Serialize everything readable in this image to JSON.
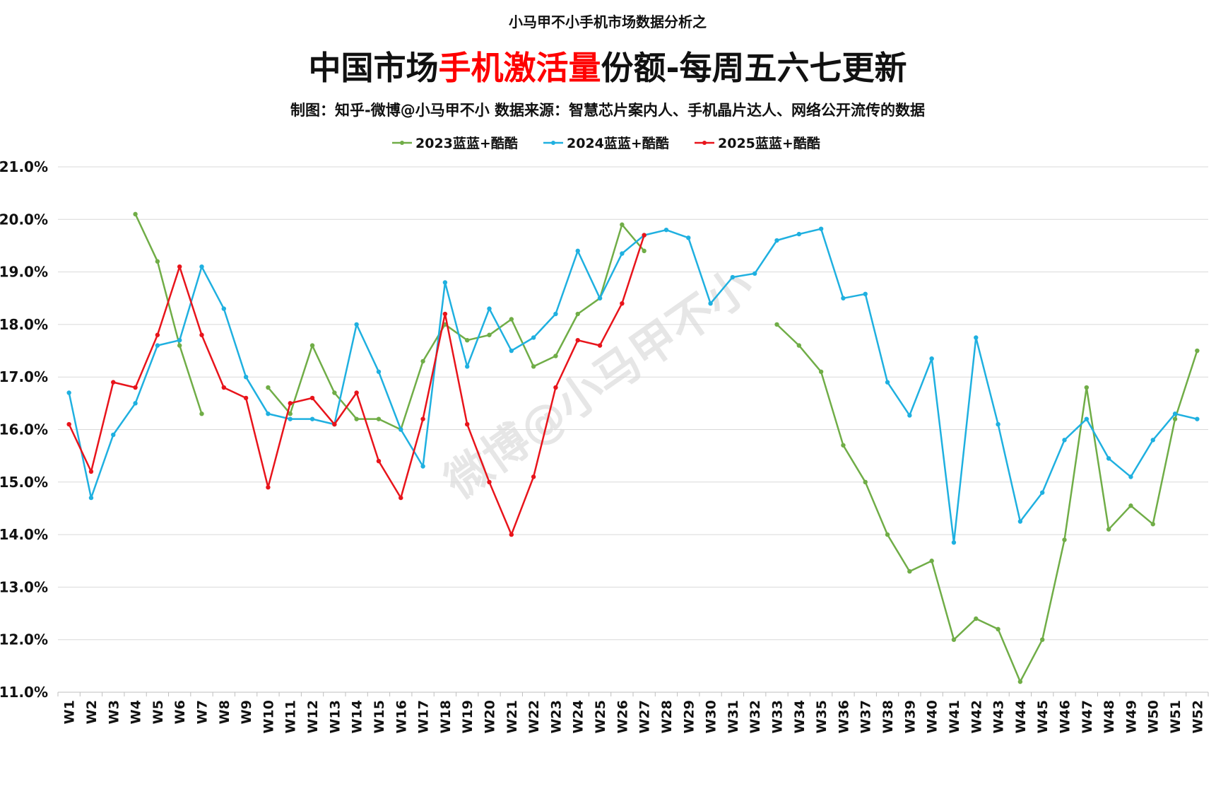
{
  "header": {
    "pretitle": "小马甲不小手机市场数据分析之",
    "title_part1": "中国市场",
    "title_highlight": "手机激活量",
    "title_part2": "份额-每周五六七更新",
    "subtitle": "制图：知乎-微博@小马甲不小  数据来源：智慧芯片案内人、手机晶片达人、网络公开流传的数据"
  },
  "watermark": "微博@小马甲不小",
  "colors": {
    "title_highlight": "#ff0000",
    "series_2023": "#70ad47",
    "series_2024": "#1fb0e0",
    "series_2025": "#e8141b",
    "grid": "#d9d9d9"
  },
  "chart_data": {
    "type": "line",
    "title": "中国市场手机激活量份额-每周五六七更新",
    "xlabel": "",
    "ylabel": "",
    "ylim": [
      11.0,
      21.0
    ],
    "y_ticks": [
      "21.0%",
      "20.0%",
      "19.0%",
      "18.0%",
      "17.0%",
      "16.0%",
      "15.0%",
      "14.0%",
      "13.0%",
      "12.0%",
      "11.0%"
    ],
    "grid": true,
    "legend_position": "top-center",
    "categories": [
      "W1",
      "W2",
      "W3",
      "W4",
      "W5",
      "W6",
      "W7",
      "W8",
      "W9",
      "W10",
      "W11",
      "W12",
      "W13",
      "W14",
      "W15",
      "W16",
      "W17",
      "W18",
      "W19",
      "W20",
      "W21",
      "W22",
      "W23",
      "W24",
      "W25",
      "W26",
      "W27",
      "W28",
      "W29",
      "W30",
      "W31",
      "W32",
      "W33",
      "W34",
      "W35",
      "W36",
      "W37",
      "W38",
      "W39",
      "W40",
      "W41",
      "W42",
      "W43",
      "W44",
      "W45",
      "W46",
      "W47",
      "W48",
      "W49",
      "W50",
      "W51",
      "W52"
    ],
    "series": [
      {
        "name": "2023蓝蓝+酷酷",
        "color": "#70ad47",
        "values": [
          null,
          null,
          null,
          20.1,
          19.2,
          17.6,
          16.3,
          null,
          null,
          16.8,
          16.3,
          17.6,
          16.7,
          16.2,
          16.2,
          16.0,
          17.3,
          18.0,
          17.7,
          17.8,
          18.1,
          17.2,
          17.4,
          18.2,
          18.5,
          19.9,
          19.4,
          null,
          null,
          null,
          null,
          null,
          18.0,
          17.6,
          17.1,
          15.7,
          15.0,
          14.0,
          13.3,
          13.5,
          12.0,
          12.4,
          12.2,
          11.2,
          12.0,
          13.9,
          16.8,
          14.1,
          14.55,
          14.2,
          16.2,
          17.5
        ]
      },
      {
        "name": "2024蓝蓝+酷酷",
        "color": "#1fb0e0",
        "values": [
          16.7,
          14.7,
          15.9,
          16.5,
          17.6,
          17.7,
          19.1,
          18.3,
          17.0,
          16.3,
          16.2,
          16.2,
          16.1,
          18.0,
          17.1,
          16.0,
          15.3,
          18.8,
          17.2,
          18.3,
          17.5,
          17.75,
          18.2,
          19.4,
          18.5,
          19.35,
          19.7,
          19.8,
          19.65,
          18.4,
          18.9,
          18.97,
          19.6,
          19.72,
          19.82,
          18.5,
          18.58,
          16.9,
          16.27,
          17.35,
          13.85,
          17.75,
          16.1,
          14.25,
          14.8,
          15.8,
          16.2,
          15.45,
          15.1,
          15.8,
          16.3,
          16.2
        ]
      },
      {
        "name": "2025蓝蓝+酷酷",
        "color": "#e8141b",
        "values": [
          16.1,
          15.2,
          16.9,
          16.8,
          17.8,
          19.1,
          17.8,
          16.8,
          16.6,
          14.9,
          16.5,
          16.6,
          16.1,
          16.7,
          15.4,
          14.7,
          16.2,
          18.2,
          16.1,
          15.0,
          14.0,
          15.1,
          16.8,
          17.7,
          17.6,
          18.4,
          19.7,
          null,
          null,
          null,
          null,
          null,
          null,
          null,
          null,
          null,
          null,
          null,
          null,
          null,
          null,
          null,
          null,
          null,
          null,
          null,
          null,
          null,
          null,
          null,
          null,
          null
        ]
      }
    ]
  }
}
